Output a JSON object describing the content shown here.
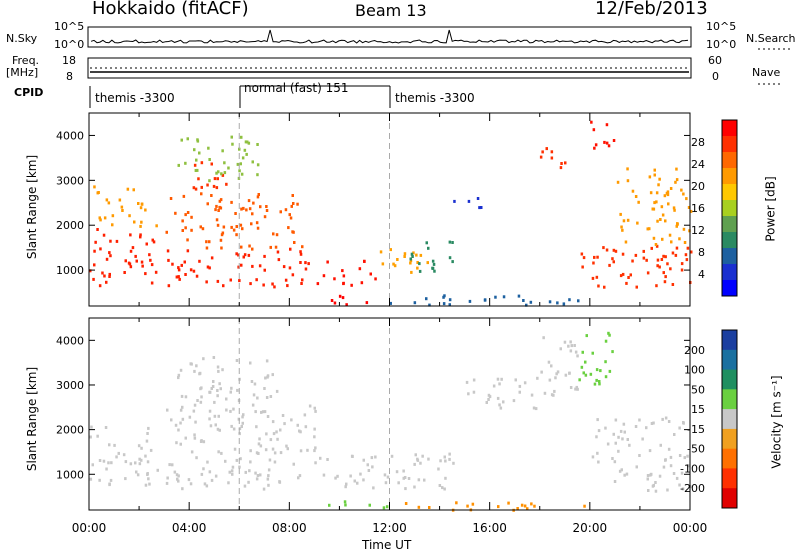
{
  "header": {
    "station": "Hokkaido (fitACF)",
    "beam": "Beam 13",
    "date": "12/Feb/2013"
  },
  "left_labels": {
    "nsky": "N.Sky",
    "freq_line1": "Freq.",
    "freq_line2": "[MHz]",
    "cpid": "CPID"
  },
  "right_labels": {
    "nsearch": "N.Search",
    "nave": "Nave"
  },
  "nsky_ticks": [
    "10^5",
    "10^0"
  ],
  "freq_ticks": [
    "18",
    "8"
  ],
  "nave_ticks": [
    "60",
    "0"
  ],
  "cpid_segments": [
    {
      "label": "themis -3300",
      "start": 0,
      "end": 6
    },
    {
      "label": "normal (fast) 151",
      "start": 6,
      "end": 12
    },
    {
      "label": "themis -3300",
      "start": 12,
      "end": 24
    }
  ],
  "colorbars": {
    "power": {
      "label": "Power [dB]",
      "ticks": [
        "28",
        "24",
        "20",
        "16",
        "12",
        "8",
        "4"
      ],
      "colors": [
        "#ff0000",
        "#ff3000",
        "#ff6800",
        "#ff9a00",
        "#ffc800",
        "#a8d020",
        "#5fa050",
        "#2a8a62",
        "#1d60a0",
        "#1a30d0",
        "#0000ff"
      ]
    },
    "velocity": {
      "label": "Velocity [m s⁻¹]",
      "ticks": [
        "200",
        "100",
        "50",
        "15",
        "-15",
        "-50",
        "-100",
        "-200"
      ],
      "colors": [
        "#1b3fa0",
        "#1a70a0",
        "#1f8f60",
        "#6ad040",
        "#c8c8c8",
        "#f0a020",
        "#ff7000",
        "#ff3000",
        "#e00000"
      ]
    }
  },
  "chart_data": [
    {
      "type": "heatmap",
      "name": "power",
      "ylabel": "Slant Range [km]",
      "yticks": [
        1000,
        2000,
        3000,
        4000
      ],
      "ylim": [
        200,
        4500
      ],
      "xlim": [
        0,
        24
      ],
      "regions": [
        {
          "t0": 0.0,
          "t1": 2.7,
          "r0": 650,
          "r1": 1950,
          "c": "#ff2000"
        },
        {
          "t0": 0.0,
          "t1": 2.7,
          "r0": 1950,
          "r1": 2900,
          "c": "#ff9a00"
        },
        {
          "t0": 2.9,
          "t1": 8.8,
          "r0": 650,
          "r1": 1500,
          "c": "#ff2000"
        },
        {
          "t0": 3.0,
          "t1": 8.5,
          "r0": 1500,
          "r1": 2800,
          "c": "#ff5a00"
        },
        {
          "t0": 4.0,
          "t1": 5.5,
          "r0": 2800,
          "r1": 3500,
          "c": "#ff3000"
        },
        {
          "t0": 3.5,
          "t1": 7.0,
          "r0": 3000,
          "r1": 4000,
          "c": "#8fc040"
        },
        {
          "t0": 9.0,
          "t1": 11.5,
          "r0": 650,
          "r1": 1300,
          "c": "#ff1000"
        },
        {
          "t0": 11.5,
          "t1": 13.5,
          "r0": 800,
          "r1": 1500,
          "c": "#ffa000"
        },
        {
          "t0": 12.8,
          "t1": 14.5,
          "r0": 900,
          "r1": 1700,
          "c": "#2a8a62"
        },
        {
          "t0": 9.5,
          "t1": 12.0,
          "r0": 250,
          "r1": 450,
          "c": "#ff0000"
        },
        {
          "t0": 12.0,
          "t1": 19.5,
          "r0": 250,
          "r1": 500,
          "c": "#1d60a0"
        },
        {
          "t0": 14.5,
          "t1": 15.8,
          "r0": 2400,
          "r1": 2700,
          "c": "#1a30d0"
        },
        {
          "t0": 18.0,
          "t1": 19.0,
          "r0": 3300,
          "r1": 3800,
          "c": "#ff3000"
        },
        {
          "t0": 19.5,
          "t1": 24.0,
          "r0": 650,
          "r1": 1600,
          "c": "#ff3000"
        },
        {
          "t0": 21.0,
          "t1": 24.0,
          "r0": 1600,
          "r1": 3300,
          "c": "#ff9a00"
        },
        {
          "t0": 20.0,
          "t1": 21.0,
          "r0": 3500,
          "r1": 4400,
          "c": "#ff1000"
        }
      ]
    },
    {
      "type": "heatmap",
      "name": "velocity",
      "ylabel": "Slant Range [km]",
      "yticks": [
        1000,
        2000,
        3000,
        4000
      ],
      "ylim": [
        200,
        4500
      ],
      "xlim": [
        0,
        24
      ],
      "regions": [
        {
          "t0": 0.0,
          "t1": 2.7,
          "r0": 650,
          "r1": 2100,
          "c": "#c8c8c8"
        },
        {
          "t0": 2.9,
          "t1": 9.0,
          "r0": 700,
          "r1": 2600,
          "c": "#c8c8c8"
        },
        {
          "t0": 3.5,
          "t1": 7.5,
          "r0": 2600,
          "r1": 3700,
          "c": "#c8c8c8"
        },
        {
          "t0": 9.0,
          "t1": 15.0,
          "r0": 700,
          "r1": 1500,
          "c": "#c8c8c8"
        },
        {
          "t0": 9.5,
          "t1": 12.0,
          "r0": 250,
          "r1": 500,
          "c": "#6ad040"
        },
        {
          "t0": 12.0,
          "t1": 20.0,
          "r0": 220,
          "r1": 400,
          "c": "#ff9000"
        },
        {
          "t0": 18.0,
          "t1": 19.5,
          "r0": 2800,
          "r1": 4100,
          "c": "#c8c8c8"
        },
        {
          "t0": 19.5,
          "t1": 21.0,
          "r0": 3000,
          "r1": 4200,
          "c": "#6ad040"
        },
        {
          "t0": 20.0,
          "t1": 24.0,
          "r0": 650,
          "r1": 2300,
          "c": "#c8c8c8"
        },
        {
          "t0": 15.0,
          "t1": 18.0,
          "r0": 2500,
          "r1": 3200,
          "c": "#c8c8c8"
        }
      ]
    }
  ],
  "x_axis": {
    "label": "Time UT",
    "ticks": [
      "00:00",
      "04:00",
      "08:00",
      "12:00",
      "16:00",
      "20:00",
      "00:00"
    ]
  }
}
